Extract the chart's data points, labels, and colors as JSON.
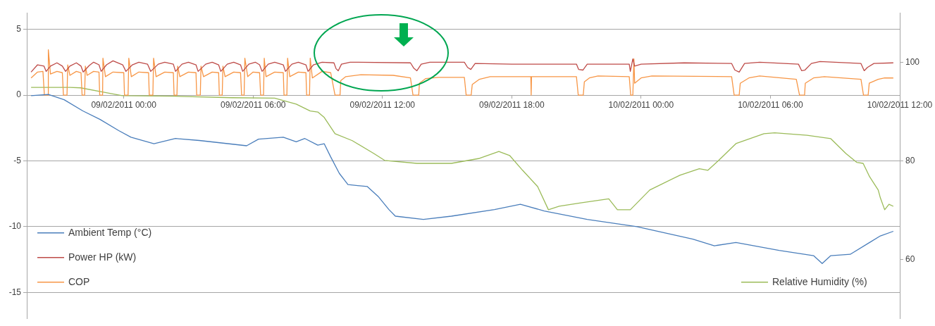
{
  "chart_data": {
    "type": "line",
    "marker": "none",
    "grid": "y",
    "legend": "bottom left",
    "xlim": [
      "2011-02-08T19:30",
      "2011-02-10T12:00"
    ],
    "xticks": [
      {
        "value": "2011-02-09T00:00",
        "label": "09/02/2011 00:00"
      },
      {
        "value": "2011-02-09T06:00",
        "label": "09/02/2011 06:00"
      },
      {
        "value": "2011-02-09T12:00",
        "label": "09/02/2011 12:00"
      },
      {
        "value": "2011-02-09T18:00",
        "label": "09/02/2011 18:00"
      },
      {
        "value": "2011-02-10T00:00",
        "label": "10/02/2011 00:00"
      },
      {
        "value": "2011-02-10T06:00",
        "label": "10/02/2011 06:00"
      },
      {
        "value": "2011-02-10T12:00",
        "label": "10/02/2011 12:00"
      }
    ],
    "ylim": [
      -17,
      6.25
    ],
    "yticks": [
      -15,
      -10,
      -5,
      0,
      5
    ],
    "y2lim": [
      48,
      110
    ],
    "y2ticks": [
      60,
      80,
      100
    ],
    "series": [
      {
        "name": "Ambient Temp (°C)",
        "color": "#4a7ebb",
        "x": [
          "2011-02-08T19:42",
          "2011-02-08T20:30",
          "2011-02-08T21:14",
          "2011-02-08T22:06",
          "2011-02-08T22:54",
          "2011-02-08T23:46",
          "2011-02-09T00:20",
          "2011-02-09T01:24",
          "2011-02-09T02:24",
          "2011-02-09T03:30",
          "2011-02-09T05:42",
          "2011-02-09T06:15",
          "2011-02-09T07:24",
          "2011-02-09T08:00",
          "2011-02-09T08:24",
          "2011-02-09T09:00",
          "2011-02-09T09:18",
          "2011-02-09T09:36",
          "2011-02-09T10:00",
          "2011-02-09T10:24",
          "2011-02-09T11:18",
          "2011-02-09T11:48",
          "2011-02-09T12:18",
          "2011-02-09T12:36",
          "2011-02-09T13:54",
          "2011-02-09T15:12",
          "2011-02-09T17:12",
          "2011-02-09T18:24",
          "2011-02-09T19:30",
          "2011-02-09T21:30",
          "2011-02-09T23:48",
          "2011-02-10T02:24",
          "2011-02-10T03:24",
          "2011-02-10T04:24",
          "2011-02-10T06:24",
          "2011-02-10T08:00",
          "2011-02-10T08:24",
          "2011-02-10T08:48",
          "2011-02-10T09:42",
          "2011-02-10T10:36",
          "2011-02-10T11:06",
          "2011-02-10T11:42"
        ],
        "values": [
          -0.05,
          0.05,
          -0.35,
          -1.2,
          -1.85,
          -2.7,
          -3.2,
          -3.7,
          -3.3,
          -3.45,
          -3.85,
          -3.35,
          -3.2,
          -3.55,
          -3.3,
          -3.8,
          -3.7,
          -4.7,
          -5.95,
          -6.8,
          -6.95,
          -7.7,
          -8.7,
          -9.2,
          -9.45,
          -9.2,
          -8.7,
          -8.3,
          -8.8,
          -9.45,
          -10,
          -10.95,
          -11.45,
          -11.2,
          -11.8,
          -12.2,
          -12.8,
          -12.2,
          -12.1,
          -11.2,
          -10.7,
          -10.35
        ]
      },
      {
        "name": "Power HP (kW)",
        "color": "#be4b48",
        "x": [
          "2011-02-08T19:42",
          "2011-02-08T20:00",
          "2011-02-08T20:18",
          "2011-02-08T20:24",
          "2011-02-08T20:36",
          "2011-02-08T20:54",
          "2011-02-08T21:09",
          "2011-02-08T21:18",
          "2011-02-08T21:30",
          "2011-02-08T21:48",
          "2011-02-08T22:01",
          "2011-02-08T22:07",
          "2011-02-08T22:24",
          "2011-02-08T22:36",
          "2011-02-08T22:51",
          "2011-02-08T22:57",
          "2011-02-08T23:12",
          "2011-02-08T23:30",
          "2011-02-08T23:57",
          "2011-02-09T00:06",
          "2011-02-09T00:24",
          "2011-02-09T00:42",
          "2011-02-09T01:06",
          "2011-02-09T01:15",
          "2011-02-09T01:36",
          "2011-02-09T01:54",
          "2011-02-09T02:18",
          "2011-02-09T02:24",
          "2011-02-09T02:42",
          "2011-02-09T03:00",
          "2011-02-09T03:21",
          "2011-02-09T03:27",
          "2011-02-09T03:48",
          "2011-02-09T04:06",
          "2011-02-09T04:24",
          "2011-02-09T04:30",
          "2011-02-09T04:48",
          "2011-02-09T05:06",
          "2011-02-09T05:25",
          "2011-02-09T05:31",
          "2011-02-09T05:48",
          "2011-02-09T06:06",
          "2011-02-09T06:18",
          "2011-02-09T06:25",
          "2011-02-09T06:42",
          "2011-02-09T07:00",
          "2011-02-09T07:24",
          "2011-02-09T07:30",
          "2011-02-09T07:48",
          "2011-02-09T08:06",
          "2011-02-09T08:27",
          "2011-02-09T08:33",
          "2011-02-09T08:48",
          "2011-02-09T09:12",
          "2011-02-09T09:45",
          "2011-02-09T09:51",
          "2011-02-09T09:57",
          "2011-02-09T10:06",
          "2011-02-09T10:30",
          "2011-02-09T13:18",
          "2011-02-09T13:27",
          "2011-02-09T13:36",
          "2011-02-09T13:48",
          "2011-02-09T14:12",
          "2011-02-09T15:48",
          "2011-02-09T15:57",
          "2011-02-09T16:06",
          "2011-02-09T16:18",
          "2011-02-09T18:00",
          "2011-02-09T21:00",
          "2011-02-09T21:06",
          "2011-02-09T21:18",
          "2011-02-09T21:30",
          "2011-02-09T23:27",
          "2011-02-09T23:30",
          "2011-02-09T23:37",
          "2011-02-09T23:42",
          "2011-02-10T00:00",
          "2011-02-10T02:00",
          "2011-02-10T04:12",
          "2011-02-10T04:21",
          "2011-02-10T04:33",
          "2011-02-10T04:48",
          "2011-02-10T05:30",
          "2011-02-10T07:18",
          "2011-02-10T07:27",
          "2011-02-10T07:36",
          "2011-02-10T07:54",
          "2011-02-10T08:18",
          "2011-02-10T10:12",
          "2011-02-10T10:21",
          "2011-02-10T10:30",
          "2011-02-10T10:48",
          "2011-02-10T11:42"
        ],
        "values": [
          1.75,
          2.3,
          2.2,
          1.8,
          2.2,
          2.45,
          2.2,
          1.8,
          2.2,
          2.45,
          2.2,
          1.75,
          2.25,
          2.5,
          2.3,
          1.8,
          2.3,
          2.6,
          2.3,
          1.8,
          2.3,
          2.5,
          2.35,
          1.8,
          2.35,
          2.5,
          2.35,
          1.8,
          2.35,
          2.5,
          2.3,
          1.8,
          2.35,
          2.5,
          2.3,
          1.8,
          2.35,
          2.5,
          2.3,
          1.8,
          2.35,
          2.5,
          2.3,
          1.8,
          2.35,
          2.5,
          2.3,
          1.8,
          2.35,
          2.5,
          2.3,
          1.8,
          2.3,
          2.5,
          2.45,
          2.0,
          1.85,
          2.35,
          2.5,
          2.45,
          2.05,
          1.85,
          2.35,
          2.5,
          2.5,
          2.1,
          1.95,
          2.4,
          2.35,
          2.35,
          1.95,
          1.9,
          2.35,
          2.35,
          1.8,
          2.75,
          2.2,
          2.35,
          2.45,
          2.4,
          1.9,
          1.75,
          2.4,
          2.5,
          2.35,
          1.85,
          1.9,
          2.4,
          2.55,
          2.4,
          1.85,
          2.1,
          2.4,
          2.45
        ]
      },
      {
        "name": "COP",
        "color": "#f79646",
        "x": [
          "2011-02-08T19:42",
          "2011-02-08T20:00",
          "2011-02-08T20:15",
          "2011-02-08T20:19",
          "2011-02-08T20:29",
          "2011-02-08T20:30",
          "2011-02-08T20:36",
          "2011-02-08T20:54",
          "2011-02-08T21:09",
          "2011-02-08T21:12",
          "2011-02-08T21:22",
          "2011-02-08T21:24",
          "2011-02-08T21:30",
          "2011-02-08T21:48",
          "2011-02-08T22:01",
          "2011-02-08T22:04",
          "2011-02-08T22:11",
          "2011-02-08T22:13",
          "2011-02-08T22:18",
          "2011-02-08T22:36",
          "2011-02-08T22:51",
          "2011-02-08T22:53",
          "2011-02-08T23:01",
          "2011-02-08T23:02",
          "2011-02-08T23:09",
          "2011-02-08T23:30",
          "2011-02-09T00:00",
          "2011-02-09T00:02",
          "2011-02-09T00:12",
          "2011-02-09T00:14",
          "2011-02-09T00:21",
          "2011-02-09T00:42",
          "2011-02-09T01:09",
          "2011-02-09T01:11",
          "2011-02-09T01:21",
          "2011-02-09T01:23",
          "2011-02-09T01:30",
          "2011-02-09T01:54",
          "2011-02-09T02:18",
          "2011-02-09T02:20",
          "2011-02-09T02:28",
          "2011-02-09T02:30",
          "2011-02-09T02:36",
          "2011-02-09T03:00",
          "2011-02-09T03:21",
          "2011-02-09T03:23",
          "2011-02-09T03:33",
          "2011-02-09T03:35",
          "2011-02-09T03:42",
          "2011-02-09T04:06",
          "2011-02-09T04:24",
          "2011-02-09T04:26",
          "2011-02-09T04:34",
          "2011-02-09T04:36",
          "2011-02-09T04:42",
          "2011-02-09T05:06",
          "2011-02-09T05:25",
          "2011-02-09T05:28",
          "2011-02-09T05:35",
          "2011-02-09T05:37",
          "2011-02-09T05:45",
          "2011-02-09T06:00",
          "2011-02-09T06:18",
          "2011-02-09T06:21",
          "2011-02-09T06:29",
          "2011-02-09T06:31",
          "2011-02-09T06:36",
          "2011-02-09T07:00",
          "2011-02-09T07:24",
          "2011-02-09T07:26",
          "2011-02-09T07:34",
          "2011-02-09T07:36",
          "2011-02-09T07:42",
          "2011-02-09T08:06",
          "2011-02-09T08:27",
          "2011-02-09T08:29",
          "2011-02-09T08:37",
          "2011-02-09T08:39",
          "2011-02-09T08:45",
          "2011-02-09T09:12",
          "2011-02-09T09:36",
          "2011-02-09T09:48",
          "2011-02-09T10:02",
          "2011-02-09T10:04",
          "2011-02-09T10:18",
          "2011-02-09T11:00",
          "2011-02-09T12:30",
          "2011-02-09T13:18",
          "2011-02-09T13:25",
          "2011-02-09T13:41",
          "2011-02-09T13:43",
          "2011-02-09T14:00",
          "2011-02-09T14:36",
          "2011-02-09T15:48",
          "2011-02-09T15:53",
          "2011-02-09T16:07",
          "2011-02-09T16:10",
          "2011-02-09T16:30",
          "2011-02-09T17:00",
          "2011-02-09T18:53",
          "2011-02-09T18:54",
          "2011-02-09T18:55",
          "2011-02-09T21:00",
          "2011-02-09T21:05",
          "2011-02-09T21:19",
          "2011-02-09T21:22",
          "2011-02-09T21:36",
          "2011-02-09T22:00",
          "2011-02-09T23:27",
          "2011-02-09T23:31",
          "2011-02-09T23:37",
          "2011-02-09T23:40",
          "2011-02-09T23:42",
          "2011-02-10T00:00",
          "2011-02-10T00:30",
          "2011-02-10T04:12",
          "2011-02-10T04:19",
          "2011-02-10T04:33",
          "2011-02-10T04:36",
          "2011-02-10T05:00",
          "2011-02-10T05:30",
          "2011-02-10T07:12",
          "2011-02-10T07:21",
          "2011-02-10T07:35",
          "2011-02-10T07:37",
          "2011-02-10T08:00",
          "2011-02-10T08:30",
          "2011-02-10T10:12",
          "2011-02-10T10:19",
          "2011-02-10T10:32",
          "2011-02-10T10:35",
          "2011-02-10T11:00",
          "2011-02-10T11:18",
          "2011-02-10T11:42"
        ],
        "values": [
          1.3,
          1.75,
          1.8,
          0,
          0,
          3.45,
          1.6,
          1.8,
          1.7,
          0,
          0,
          2.3,
          1.5,
          1.8,
          1.7,
          0,
          0,
          2.2,
          1.5,
          1.8,
          1.75,
          0,
          0,
          2.8,
          1.4,
          1.75,
          1.7,
          0,
          0,
          2.8,
          1.4,
          1.75,
          1.7,
          0,
          0,
          2.8,
          1.4,
          1.75,
          1.7,
          0,
          0,
          2.2,
          1.4,
          1.75,
          1.7,
          0,
          0,
          2.2,
          1.4,
          1.75,
          1.7,
          0,
          0,
          2.2,
          1.4,
          1.75,
          1.7,
          0,
          0,
          2.8,
          1.4,
          1.75,
          1.7,
          0,
          0,
          2.8,
          1.4,
          1.75,
          1.7,
          0,
          0,
          2.8,
          1.4,
          1.75,
          1.7,
          0,
          0,
          2.8,
          1.3,
          1.8,
          1.7,
          0,
          0,
          1.1,
          1.4,
          1.55,
          1.5,
          1.3,
          0,
          0,
          0.9,
          1.25,
          1.35,
          1.35,
          0,
          0,
          0.8,
          1.2,
          1.4,
          1.4,
          0,
          1.4,
          1.4,
          0,
          0,
          1.0,
          1.3,
          1.45,
          1.4,
          0,
          0,
          2.75,
          0.9,
          1.3,
          1.45,
          1.4,
          0,
          0,
          0.9,
          1.3,
          1.45,
          1.2,
          0,
          0,
          0.9,
          1.3,
          1.4,
          1.2,
          0,
          0,
          0.9,
          1.2,
          1.3,
          1.3
        ]
      },
      {
        "name": "Relative Humidity (%)",
        "color": "#9bbb59",
        "axis": "y2",
        "x": [
          "2011-02-08T19:42",
          "2011-02-08T21:30",
          "2011-02-08T22:00",
          "2011-02-08T23:06",
          "2011-02-08T23:56",
          "2011-02-09T02:24",
          "2011-02-09T05:00",
          "2011-02-09T07:00",
          "2011-02-09T08:00",
          "2011-02-09T08:39",
          "2011-02-09T09:00",
          "2011-02-09T09:18",
          "2011-02-09T09:48",
          "2011-02-09T10:36",
          "2011-02-09T11:36",
          "2011-02-09T12:06",
          "2011-02-09T13:36",
          "2011-02-09T15:12",
          "2011-02-09T16:30",
          "2011-02-09T17:24",
          "2011-02-09T17:54",
          "2011-02-09T18:30",
          "2011-02-09T19:12",
          "2011-02-09T19:42",
          "2011-02-09T20:12",
          "2011-02-09T21:12",
          "2011-02-09T22:30",
          "2011-02-09T22:54",
          "2011-02-09T23:30",
          "2011-02-10T00:24",
          "2011-02-10T01:48",
          "2011-02-10T02:42",
          "2011-02-10T03:06",
          "2011-02-10T03:36",
          "2011-02-10T04:24",
          "2011-02-10T05:42",
          "2011-02-10T06:12",
          "2011-02-10T07:42",
          "2011-02-10T08:48",
          "2011-02-10T09:30",
          "2011-02-10T10:00",
          "2011-02-10T10:18",
          "2011-02-10T10:36",
          "2011-02-10T11:00",
          "2011-02-10T11:06",
          "2011-02-10T11:18",
          "2011-02-10T11:30",
          "2011-02-10T11:42"
        ],
        "values": [
          94.9,
          94.9,
          94.8,
          93.9,
          93.2,
          93.1,
          92.8,
          92.7,
          91.5,
          90.1,
          89.9,
          88.8,
          85.5,
          84.1,
          81.5,
          80.1,
          79.5,
          79.5,
          80.5,
          81.9,
          81.1,
          78.1,
          74.8,
          70.1,
          70.8,
          71.5,
          72.3,
          70.1,
          70.1,
          74.1,
          77.1,
          78.4,
          78.1,
          80.1,
          83.5,
          85.5,
          85.7,
          85.2,
          84.5,
          81.5,
          79.7,
          79.5,
          76.8,
          74.1,
          72.5,
          70.1,
          71.2,
          70.8
        ]
      }
    ]
  }
}
